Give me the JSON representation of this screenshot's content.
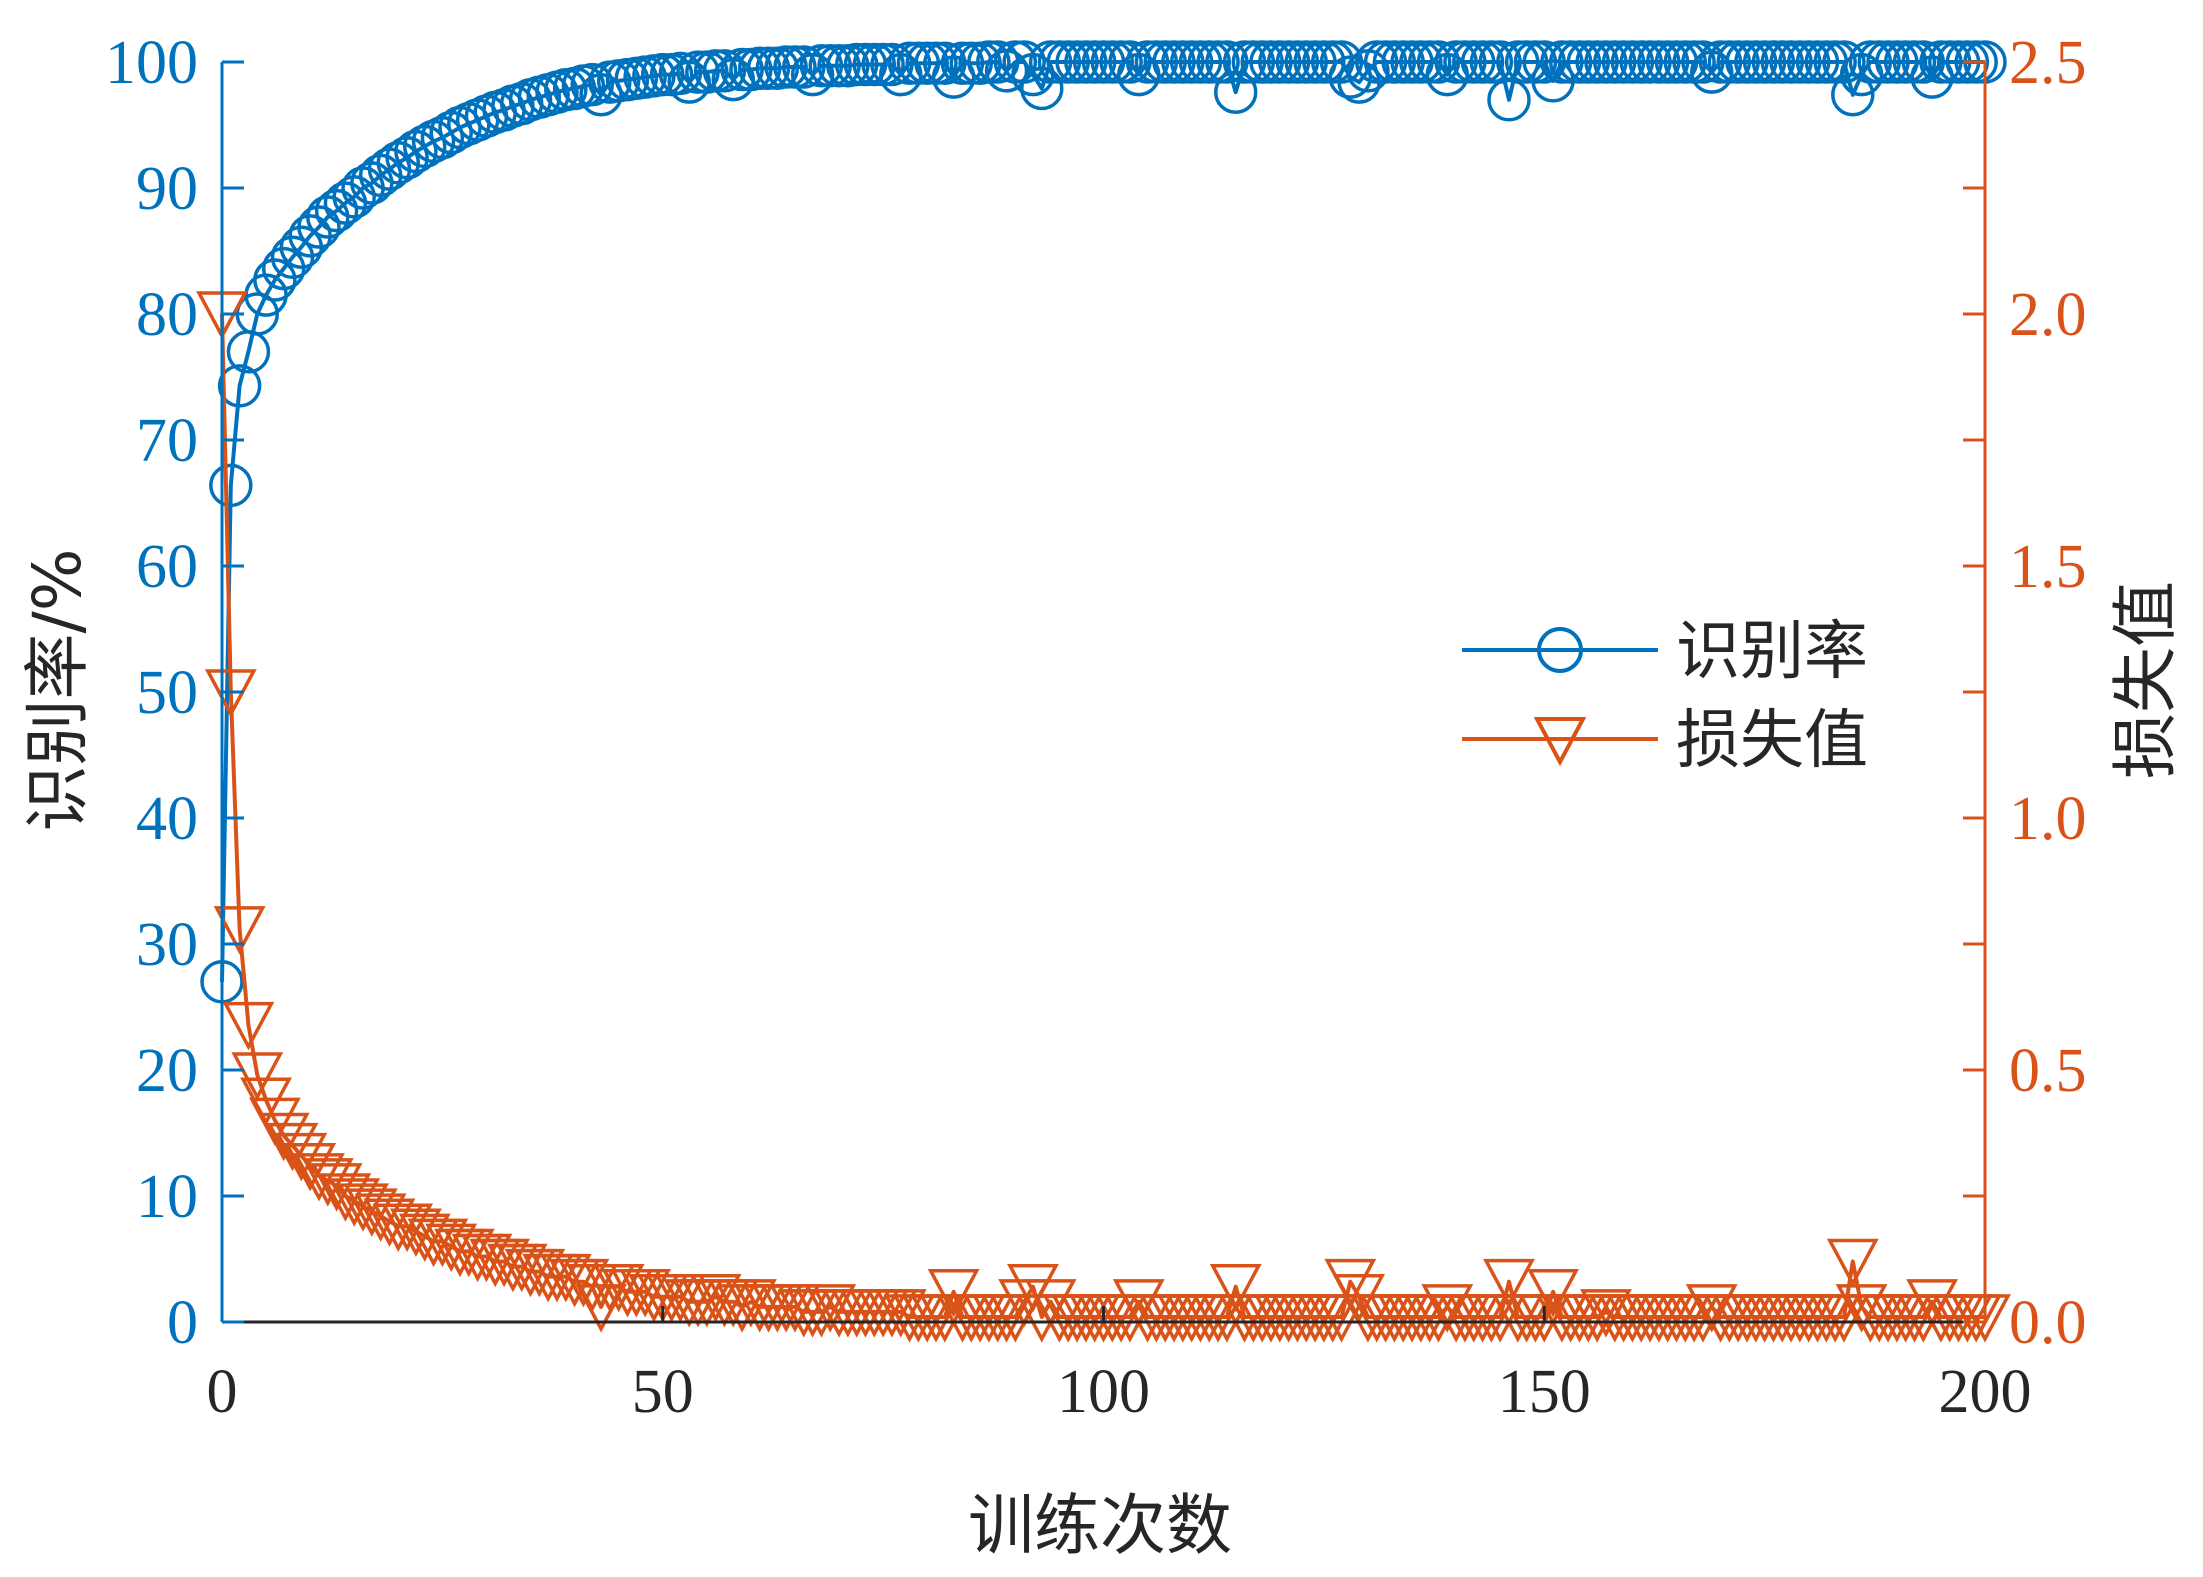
{
  "chart_data": {
    "type": "line",
    "title": "",
    "xlabel": "训练次数",
    "ylabel_left": "识别率/%",
    "ylabel_right": "损失值",
    "xlim": [
      0,
      200
    ],
    "ylim_left": [
      0,
      100
    ],
    "ylim_right": [
      0,
      2.5
    ],
    "xticks": [
      "0",
      "50",
      "100",
      "150",
      "200"
    ],
    "yticks_left": [
      "0",
      "10",
      "20",
      "30",
      "40",
      "50",
      "60",
      "70",
      "80",
      "90",
      "100"
    ],
    "yticks_right": [
      "0.0",
      "0.5",
      "1.0",
      "1.5",
      "2.0",
      "2.5"
    ],
    "grid": false,
    "legend_position": "center-right",
    "x_sampling": "every 1 from 0 to 200",
    "colors": {
      "accuracy": "#0072BD",
      "loss": "#D95319",
      "axis": "#262626"
    },
    "series": [
      {
        "name": "识别率",
        "axis": "left",
        "marker": "circle",
        "values": [
          27.0,
          66.4,
          74.3,
          77.0,
          80.0,
          81.5,
          82.7,
          83.6,
          84.5,
          85.3,
          86.2,
          86.9,
          87.7,
          88.2,
          88.8,
          89.3,
          90.0,
          90.4,
          91.0,
          91.5,
          92.0,
          92.4,
          92.9,
          93.3,
          93.7,
          94.0,
          94.4,
          94.8,
          95.1,
          95.4,
          95.7,
          96.0,
          96.2,
          96.5,
          96.7,
          97.0,
          97.2,
          97.4,
          97.6,
          97.8,
          97.9,
          98.1,
          98.2,
          97.4,
          98.4,
          98.5,
          98.6,
          98.7,
          98.8,
          98.9,
          99.0,
          99.0,
          99.1,
          98.4,
          99.2,
          99.2,
          99.3,
          99.3,
          98.6,
          99.4,
          99.4,
          99.5,
          99.5,
          99.5,
          99.6,
          99.6,
          99.6,
          99.0,
          99.7,
          99.7,
          99.7,
          99.7,
          99.8,
          99.8,
          99.8,
          99.8,
          99.8,
          99.0,
          99.9,
          99.9,
          99.9,
          99.9,
          99.9,
          98.8,
          99.9,
          99.9,
          99.9,
          100.0,
          100.0,
          99.3,
          100.0,
          100.0,
          99.0,
          97.9,
          100.0,
          100.0,
          100.0,
          100.0,
          100.0,
          100.0,
          100.0,
          100.0,
          100.0,
          100.0,
          99.0,
          100.0,
          100.0,
          100.0,
          100.0,
          100.0,
          100.0,
          100.0,
          100.0,
          100.0,
          100.0,
          97.6,
          100.0,
          100.0,
          100.0,
          100.0,
          100.0,
          100.0,
          100.0,
          100.0,
          100.0,
          100.0,
          100.0,
          100.0,
          98.8,
          98.4,
          99.3,
          100.0,
          100.0,
          100.0,
          100.0,
          100.0,
          100.0,
          100.0,
          100.0,
          99.0,
          100.0,
          100.0,
          100.0,
          100.0,
          100.0,
          100.0,
          97.0,
          100.0,
          100.0,
          100.0,
          100.0,
          98.5,
          100.0,
          100.0,
          100.0,
          100.0,
          100.0,
          100.0,
          100.0,
          100.0,
          100.0,
          100.0,
          100.0,
          100.0,
          100.0,
          100.0,
          100.0,
          100.0,
          100.0,
          99.2,
          100.0,
          100.0,
          100.0,
          100.0,
          100.0,
          100.0,
          100.0,
          100.0,
          100.0,
          100.0,
          100.0,
          100.0,
          100.0,
          100.0,
          100.0,
          97.4,
          99.0,
          100.0,
          100.0,
          100.0,
          100.0,
          100.0,
          100.0,
          100.0,
          98.8,
          100.0,
          100.0,
          100.0,
          100.0,
          100.0,
          100.0
        ]
      },
      {
        "name": "损失值",
        "axis": "right",
        "marker": "triangle-down",
        "values": [
          2.0,
          1.25,
          0.78,
          0.59,
          0.49,
          0.44,
          0.4,
          0.37,
          0.35,
          0.33,
          0.31,
          0.29,
          0.28,
          0.27,
          0.25,
          0.24,
          0.23,
          0.22,
          0.21,
          0.2,
          0.19,
          0.19,
          0.18,
          0.17,
          0.16,
          0.16,
          0.15,
          0.14,
          0.14,
          0.13,
          0.13,
          0.12,
          0.12,
          0.11,
          0.11,
          0.1,
          0.1,
          0.09,
          0.09,
          0.09,
          0.08,
          0.08,
          0.07,
          0.03,
          0.07,
          0.07,
          0.06,
          0.06,
          0.06,
          0.05,
          0.05,
          0.05,
          0.05,
          0.04,
          0.04,
          0.04,
          0.05,
          0.04,
          0.04,
          0.03,
          0.04,
          0.03,
          0.03,
          0.03,
          0.03,
          0.03,
          0.02,
          0.02,
          0.02,
          0.03,
          0.02,
          0.02,
          0.02,
          0.02,
          0.02,
          0.02,
          0.02,
          0.02,
          0.01,
          0.01,
          0.01,
          0.01,
          0.01,
          0.06,
          0.01,
          0.01,
          0.01,
          0.01,
          0.01,
          0.01,
          0.01,
          0.04,
          0.07,
          0.01,
          0.04,
          0.01,
          0.01,
          0.01,
          0.01,
          0.01,
          0.01,
          0.01,
          0.01,
          0.01,
          0.04,
          0.01,
          0.01,
          0.01,
          0.01,
          0.01,
          0.01,
          0.01,
          0.01,
          0.01,
          0.01,
          0.07,
          0.01,
          0.01,
          0.01,
          0.01,
          0.01,
          0.01,
          0.01,
          0.01,
          0.01,
          0.01,
          0.01,
          0.01,
          0.08,
          0.05,
          0.01,
          0.01,
          0.01,
          0.01,
          0.01,
          0.01,
          0.01,
          0.01,
          0.01,
          0.03,
          0.01,
          0.01,
          0.01,
          0.01,
          0.01,
          0.01,
          0.08,
          0.01,
          0.01,
          0.01,
          0.01,
          0.06,
          0.01,
          0.01,
          0.01,
          0.01,
          0.01,
          0.02,
          0.01,
          0.01,
          0.01,
          0.01,
          0.01,
          0.01,
          0.01,
          0.01,
          0.01,
          0.01,
          0.01,
          0.03,
          0.01,
          0.01,
          0.01,
          0.01,
          0.01,
          0.01,
          0.01,
          0.01,
          0.01,
          0.01,
          0.01,
          0.01,
          0.01,
          0.01,
          0.01,
          0.12,
          0.03,
          0.01,
          0.01,
          0.01,
          0.01,
          0.01,
          0.01,
          0.01,
          0.04,
          0.01,
          0.01,
          0.01,
          0.01,
          0.01,
          0.01
        ]
      }
    ]
  }
}
